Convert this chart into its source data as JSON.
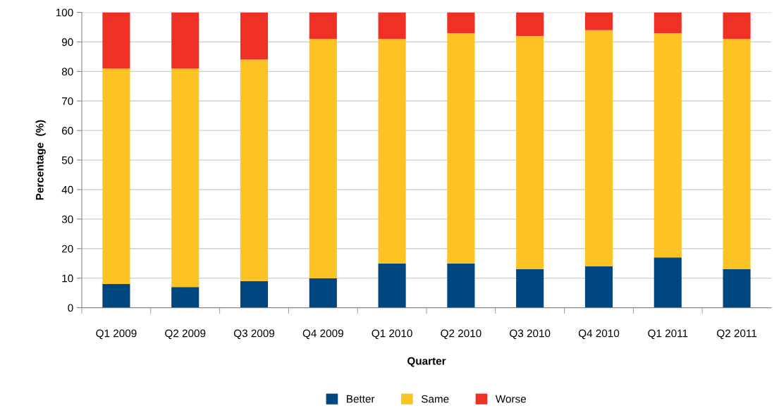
{
  "chart_data": {
    "type": "bar",
    "stacked": true,
    "xlabel": "Quarter",
    "ylabel": "Percentage  (%)",
    "categories": [
      "Q1 2009",
      "Q2 2009",
      "Q3 2009",
      "Q4 2009",
      "Q1 2010",
      "Q2 2010",
      "Q3 2010",
      "Q4 2010",
      "Q1 2011",
      "Q2 2011"
    ],
    "series": [
      {
        "name": "Better",
        "color": "#00467f",
        "values": [
          8,
          7,
          9,
          10,
          15,
          15,
          13,
          14,
          17,
          13
        ]
      },
      {
        "name": "Same",
        "color": "#fdc325",
        "values": [
          73,
          74,
          75,
          81,
          76,
          78,
          79,
          80,
          76,
          78
        ]
      },
      {
        "name": "Worse",
        "color": "#ee3124",
        "values": [
          19,
          19,
          16,
          9,
          9,
          7,
          8,
          6,
          7,
          9
        ]
      }
    ],
    "ylim": [
      0,
      100
    ],
    "yticks": [
      0,
      10,
      20,
      30,
      40,
      50,
      60,
      70,
      80,
      90,
      100
    ],
    "grid": "y",
    "legend": "bottom"
  }
}
